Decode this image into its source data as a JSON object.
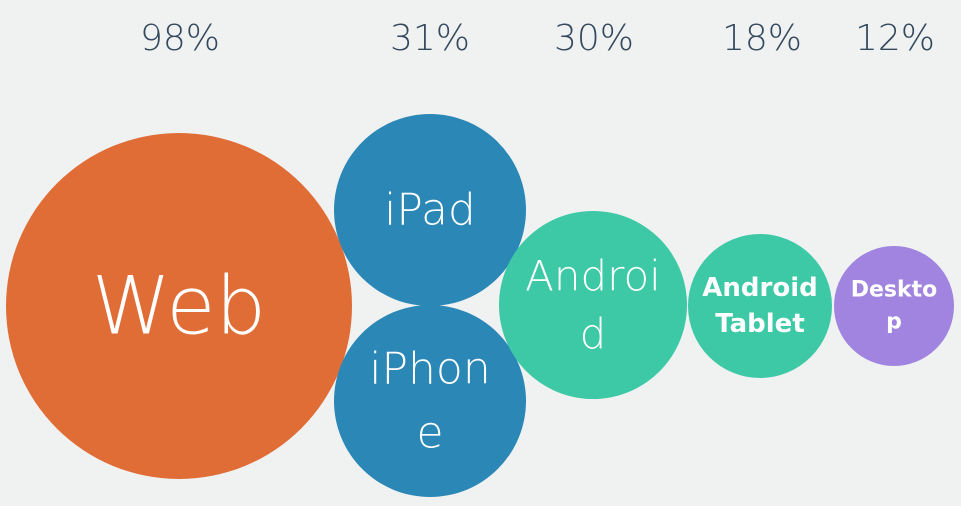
{
  "chart_data": {
    "type": "bubble",
    "columns": [
      {
        "percent": "98%",
        "value": 98,
        "bubbles": [
          {
            "label": [
              "Web"
            ],
            "color": "#e06c36"
          }
        ]
      },
      {
        "percent": "31%",
        "value": 31,
        "bubbles": [
          {
            "label": [
              "iPad"
            ],
            "color": "#2b87b6"
          },
          {
            "label": [
              "iPhon",
              "e"
            ],
            "color": "#2b87b6"
          }
        ]
      },
      {
        "percent": "30%",
        "value": 30,
        "bubbles": [
          {
            "label": [
              "Androi",
              "d"
            ],
            "color": "#3ec9a6"
          }
        ]
      },
      {
        "percent": "18%",
        "value": 18,
        "bubbles": [
          {
            "label": [
              "Android",
              "Tablet"
            ],
            "color": "#3ec9a6"
          }
        ]
      },
      {
        "percent": "12%",
        "value": 12,
        "bubbles": [
          {
            "label": [
              "Deskto",
              "p"
            ],
            "color": "#a184df"
          }
        ]
      }
    ]
  }
}
